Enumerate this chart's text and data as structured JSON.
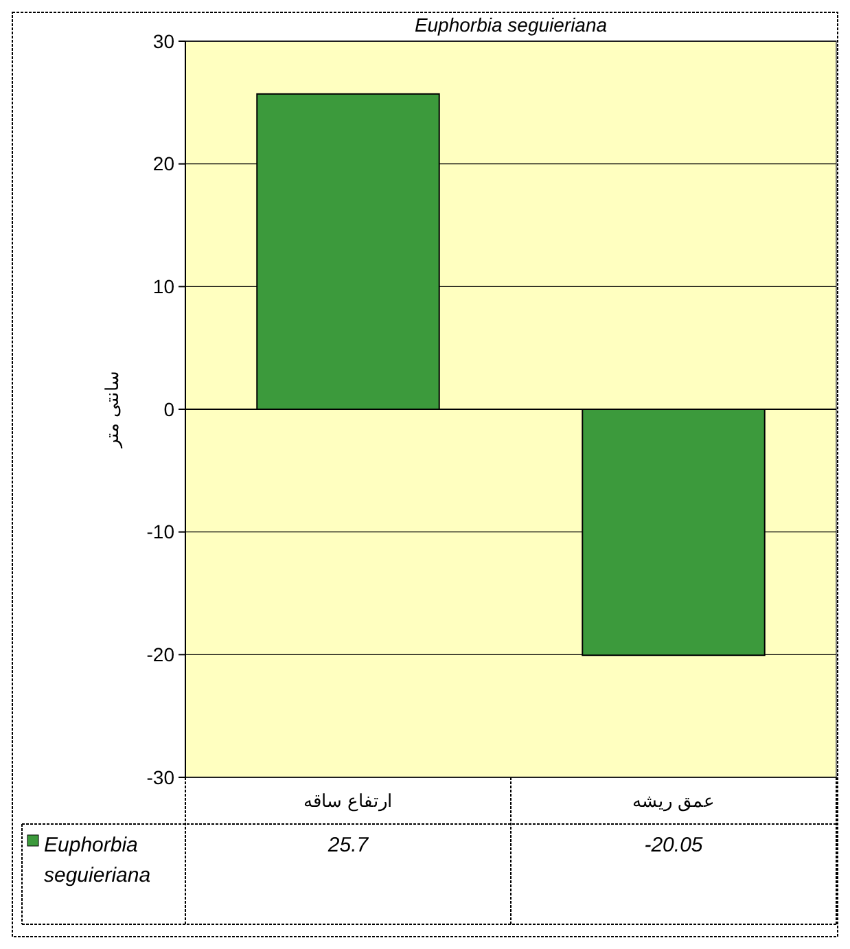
{
  "chart_data": {
    "type": "bar",
    "title": "Euphorbia seguieriana",
    "ylabel": "سانتی متر",
    "categories": [
      "ارتفاع ساقه",
      "عمق ریشه"
    ],
    "series": [
      {
        "name": "Euphorbia seguieriana",
        "color": "#3c9a3c",
        "values": [
          25.7,
          -20.05
        ]
      }
    ],
    "ylim": [
      -30,
      30
    ],
    "yticks": [
      -30,
      -20,
      -10,
      0,
      10,
      20,
      30
    ],
    "grid": "y",
    "data_labels": true
  }
}
